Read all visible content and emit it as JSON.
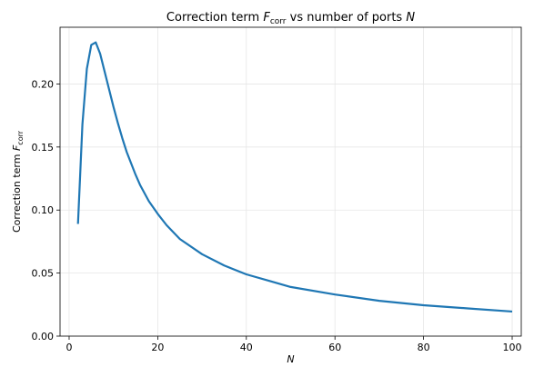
{
  "chart_data": {
    "type": "line",
    "title_parts": [
      "Correction term ",
      "F",
      "corr",
      " vs number of ports ",
      "N"
    ],
    "x_label": "N",
    "y_label_parts": [
      "Correction term ",
      "F",
      "corr"
    ],
    "x": [
      2,
      3,
      4,
      5,
      6,
      7,
      8,
      9,
      10,
      11,
      12,
      13,
      14,
      15,
      16,
      18,
      20,
      22,
      25,
      30,
      35,
      40,
      45,
      50,
      60,
      70,
      80,
      90,
      100
    ],
    "series": [
      {
        "color": "#1f77b4",
        "values": [
          0.089,
          0.168,
          0.212,
          0.231,
          0.233,
          0.224,
          0.21,
          0.196,
          0.182,
          0.169,
          0.157,
          0.146,
          0.137,
          0.128,
          0.12,
          0.107,
          0.097,
          0.088,
          0.077,
          0.065,
          0.056,
          0.049,
          0.044,
          0.039,
          0.033,
          0.028,
          0.0245,
          0.022,
          0.0195
        ]
      }
    ],
    "xlim": [
      -2.05,
      102.05
    ],
    "xticks": [
      0,
      20,
      40,
      60,
      80,
      100
    ],
    "ylim": [
      0,
      0.245
    ],
    "yticks": [
      {
        "value": 0,
        "label": "0.00"
      },
      {
        "value": 0.05,
        "label": "0.05"
      },
      {
        "value": 0.1,
        "label": "0.10"
      },
      {
        "value": 0.15,
        "label": "0.15"
      },
      {
        "value": 0.2,
        "label": "0.20"
      }
    ],
    "grid": true
  }
}
